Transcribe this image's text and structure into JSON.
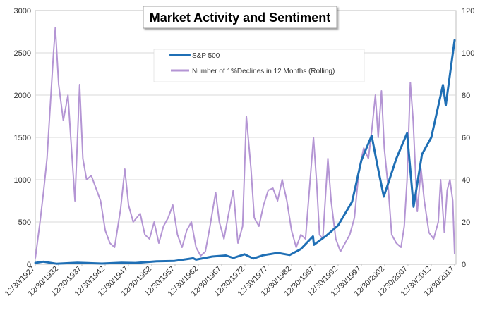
{
  "chart_data": {
    "type": "line",
    "title": "Market Activity and Sentiment",
    "x_tick_labels": [
      "12/30/1927",
      "12/30/1932",
      "12/30/1937",
      "12/30/1942",
      "12/30/1947",
      "12/30/1952",
      "12/30/1957",
      "12/30/1962",
      "12/30/1967",
      "12/30/1972",
      "12/30/1977",
      "12/30/1982",
      "12/30/1987",
      "12/30/1992",
      "12/30/1997",
      "12/30/2002",
      "12/30/2007",
      "12/30/2012",
      "12/30/2017"
    ],
    "x_range": [
      1927.99,
      2018.3
    ],
    "y_left": {
      "min": 0,
      "max": 3000,
      "ticks": [
        "0",
        "500",
        "1000",
        "1500",
        "2000",
        "2500",
        "3000"
      ]
    },
    "y_right": {
      "min": 0,
      "max": 120,
      "ticks": [
        "0",
        "20",
        "40",
        "60",
        "80",
        "100",
        "120"
      ]
    },
    "grid": true,
    "legend_position": "top-center",
    "series": [
      {
        "name": "S&P 500",
        "axis": "left",
        "color": "#1f6fb5",
        "x": [
          1928.0,
          1929.7,
          1932.5,
          1937.0,
          1942.3,
          1946.5,
          1949.5,
          1954.0,
          1957.9,
          1961.9,
          1962.5,
          1966.0,
          1968.9,
          1970.5,
          1972.9,
          1974.8,
          1976.9,
          1980.0,
          1982.6,
          1985.0,
          1987.6,
          1987.8,
          1990.5,
          1993.0,
          1996.0,
          1998.0,
          2000.2,
          2001.5,
          2002.8,
          2005.5,
          2007.8,
          2009.2,
          2011.0,
          2013.0,
          2015.5,
          2016.1,
          2018.0
        ],
        "y": [
          17,
          31,
          7,
          18,
          8,
          19,
          16,
          35,
          40,
          72,
          55,
          92,
          104,
          75,
          118,
          68,
          107,
          135,
          110,
          180,
          330,
          230,
          340,
          460,
          740,
          1230,
          1520,
          1150,
          800,
          1250,
          1550,
          680,
          1300,
          1500,
          2120,
          1880,
          2650
        ]
      },
      {
        "name": "Number of 1%Declines in 12 Months (Rolling)",
        "axis": "right",
        "color": "#b495d4",
        "x": [
          1928.0,
          1929.0,
          1929.8,
          1930.5,
          1931.2,
          1931.9,
          1932.3,
          1933.0,
          1934.0,
          1935.0,
          1935.6,
          1936.5,
          1937.5,
          1938.2,
          1939.0,
          1940.0,
          1941.0,
          1942.0,
          1943.0,
          1944.0,
          1945.0,
          1946.3,
          1947.2,
          1948.0,
          1949.0,
          1950.5,
          1951.5,
          1952.5,
          1953.5,
          1954.5,
          1955.5,
          1956.5,
          1957.5,
          1958.5,
          1959.5,
          1960.5,
          1961.5,
          1962.5,
          1963.5,
          1964.5,
          1965.5,
          1966.7,
          1967.5,
          1968.5,
          1969.5,
          1970.5,
          1971.5,
          1972.5,
          1973.3,
          1974.3,
          1975.0,
          1976.0,
          1977.0,
          1978.0,
          1979.0,
          1980.0,
          1981.0,
          1982.0,
          1983.0,
          1984.0,
          1985.0,
          1986.0,
          1987.0,
          1987.7,
          1988.4,
          1989.0,
          1989.7,
          1990.8,
          1991.5,
          1992.5,
          1993.5,
          1994.5,
          1995.5,
          1996.5,
          1997.5,
          1998.5,
          1999.5,
          2000.3,
          2001.0,
          2001.6,
          2002.3,
          2002.9,
          2003.8,
          2004.5,
          2005.5,
          2006.5,
          2007.2,
          2007.8,
          2008.5,
          2009.1,
          2010.0,
          2010.8,
          2011.5,
          2012.5,
          2013.5,
          2014.5,
          2015.0,
          2015.8,
          2016.4,
          2017.0,
          2017.6,
          2018.0
        ],
        "y": [
          3,
          20,
          35,
          50,
          75,
          100,
          112,
          85,
          68,
          80,
          60,
          30,
          85,
          50,
          40,
          42,
          36,
          30,
          16,
          10,
          8,
          26,
          45,
          28,
          20,
          24,
          14,
          12,
          20,
          10,
          18,
          22,
          28,
          14,
          8,
          16,
          20,
          8,
          4,
          6,
          18,
          34,
          20,
          12,
          24,
          35,
          10,
          18,
          70,
          45,
          22,
          18,
          28,
          35,
          36,
          30,
          40,
          30,
          16,
          8,
          14,
          12,
          40,
          60,
          38,
          14,
          12,
          50,
          30,
          12,
          6,
          10,
          14,
          22,
          45,
          55,
          50,
          65,
          80,
          60,
          82,
          55,
          35,
          14,
          10,
          8,
          18,
          40,
          86,
          68,
          25,
          45,
          30,
          15,
          12,
          20,
          40,
          15,
          35,
          40,
          30,
          5
        ]
      }
    ]
  }
}
